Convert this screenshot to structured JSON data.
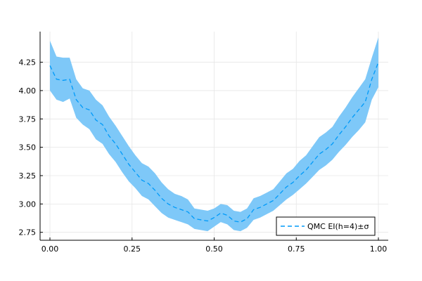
{
  "chart_data": {
    "type": "line",
    "title": "",
    "xlabel": "",
    "ylabel": "",
    "xlim": [
      -0.03,
      1.03
    ],
    "ylim": [
      2.68,
      4.52
    ],
    "grid": true,
    "legend_position": "bottom-right",
    "x_ticks": [
      0.0,
      0.25,
      0.5,
      0.75,
      1.0
    ],
    "x_tick_labels": [
      "0.00",
      "0.25",
      "0.50",
      "0.75",
      "1.00"
    ],
    "y_ticks": [
      2.75,
      3.0,
      3.25,
      3.5,
      3.75,
      4.0,
      4.25
    ],
    "y_tick_labels": [
      "2.75",
      "3.00",
      "3.25",
      "3.50",
      "3.75",
      "4.00",
      "4.25"
    ],
    "series": [
      {
        "name": "QMC EI(h=4)±σ",
        "color": "#009af9",
        "band_color": "#7ec8f8",
        "line_style": "dashed",
        "x": [
          0.0,
          0.02,
          0.04,
          0.06,
          0.08,
          0.1,
          0.12,
          0.14,
          0.16,
          0.18,
          0.2,
          0.22,
          0.24,
          0.26,
          0.28,
          0.3,
          0.32,
          0.34,
          0.36,
          0.38,
          0.4,
          0.42,
          0.44,
          0.46,
          0.48,
          0.5,
          0.52,
          0.54,
          0.56,
          0.58,
          0.6,
          0.62,
          0.64,
          0.66,
          0.68,
          0.7,
          0.72,
          0.74,
          0.76,
          0.78,
          0.8,
          0.82,
          0.84,
          0.86,
          0.88,
          0.9,
          0.92,
          0.94,
          0.96,
          0.98,
          1.0
        ],
        "y": [
          4.22,
          4.1,
          4.09,
          4.1,
          3.92,
          3.85,
          3.83,
          3.74,
          3.7,
          3.6,
          3.53,
          3.44,
          3.35,
          3.28,
          3.21,
          3.18,
          3.12,
          3.05,
          3.0,
          2.97,
          2.95,
          2.93,
          2.87,
          2.86,
          2.85,
          2.88,
          2.92,
          2.9,
          2.85,
          2.84,
          2.87,
          2.95,
          2.97,
          3.0,
          3.03,
          3.09,
          3.15,
          3.19,
          3.25,
          3.3,
          3.37,
          3.44,
          3.48,
          3.53,
          3.61,
          3.68,
          3.76,
          3.83,
          3.9,
          4.1,
          4.25
        ],
        "lower": [
          4.0,
          3.92,
          3.9,
          3.93,
          3.76,
          3.7,
          3.66,
          3.57,
          3.53,
          3.44,
          3.37,
          3.28,
          3.2,
          3.14,
          3.07,
          3.04,
          2.98,
          2.92,
          2.88,
          2.86,
          2.84,
          2.82,
          2.78,
          2.77,
          2.76,
          2.8,
          2.84,
          2.82,
          2.77,
          2.76,
          2.79,
          2.86,
          2.88,
          2.91,
          2.94,
          2.99,
          3.04,
          3.08,
          3.13,
          3.18,
          3.24,
          3.3,
          3.34,
          3.39,
          3.46,
          3.52,
          3.59,
          3.65,
          3.72,
          3.92,
          4.03
        ],
        "upper": [
          4.44,
          4.3,
          4.29,
          4.29,
          4.1,
          4.02,
          4.0,
          3.92,
          3.87,
          3.77,
          3.69,
          3.6,
          3.51,
          3.43,
          3.36,
          3.33,
          3.27,
          3.19,
          3.13,
          3.09,
          3.07,
          3.04,
          2.96,
          2.95,
          2.94,
          2.96,
          3.0,
          2.99,
          2.94,
          2.93,
          2.96,
          3.05,
          3.07,
          3.1,
          3.13,
          3.2,
          3.27,
          3.31,
          3.38,
          3.43,
          3.51,
          3.59,
          3.63,
          3.68,
          3.77,
          3.85,
          3.94,
          4.02,
          4.1,
          4.29,
          4.47
        ]
      }
    ]
  }
}
